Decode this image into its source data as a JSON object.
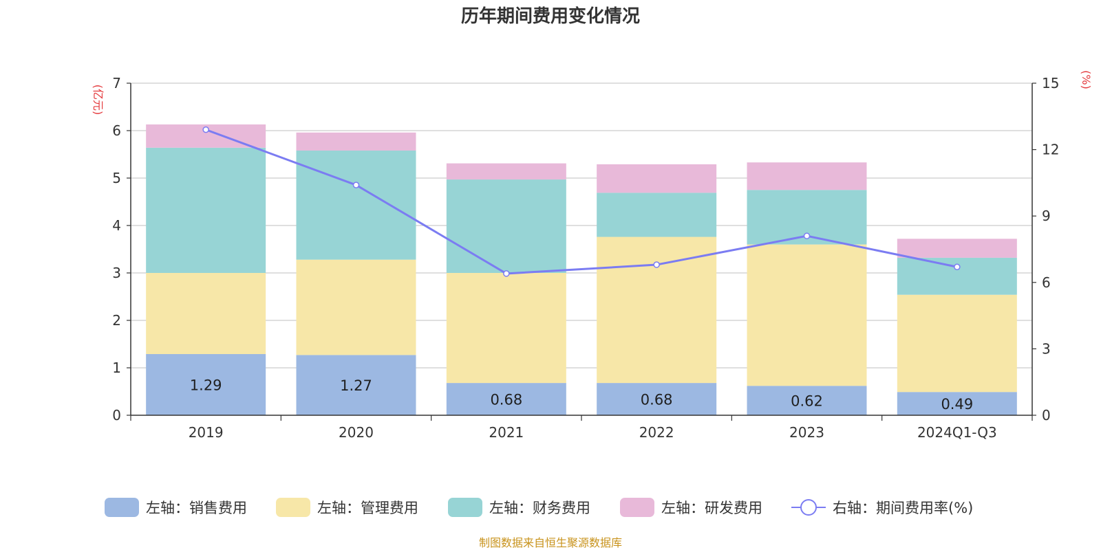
{
  "chart_data": {
    "type": "bar",
    "stacked": true,
    "title": "历年期间费用变化情况",
    "categories": [
      "2019",
      "2020",
      "2021",
      "2022",
      "2023",
      "2024Q1-Q3"
    ],
    "left_axis": {
      "unit": "(亿元)",
      "min": 0,
      "max": 7,
      "ticks": [
        "0",
        "1",
        "2",
        "3",
        "4",
        "5",
        "6",
        "7"
      ]
    },
    "right_axis": {
      "unit": "(%)",
      "min": 0,
      "max": 15,
      "ticks": [
        "0",
        "3",
        "6",
        "9",
        "12",
        "15"
      ]
    },
    "series": [
      {
        "name": "左轴：销售费用",
        "axis": "left",
        "color": "#9cb8e2",
        "values": [
          1.29,
          1.27,
          0.68,
          0.68,
          0.62,
          0.49
        ],
        "labels": [
          "1.29",
          "1.27",
          "0.68",
          "0.68",
          "0.62",
          "0.49"
        ]
      },
      {
        "name": "左轴：管理费用",
        "axis": "left",
        "color": "#f7e7a8",
        "values": [
          1.71,
          2.01,
          2.32,
          3.08,
          2.98,
          2.05
        ]
      },
      {
        "name": "左轴：财务费用",
        "axis": "left",
        "color": "#97d4d5",
        "values": [
          2.64,
          2.3,
          1.97,
          0.93,
          1.15,
          0.78
        ]
      },
      {
        "name": "左轴：研发费用",
        "axis": "left",
        "color": "#e8b9d9",
        "values": [
          0.49,
          0.38,
          0.34,
          0.6,
          0.58,
          0.4
        ]
      },
      {
        "name": "右轴：期间费用率(%)",
        "axis": "right",
        "type": "line",
        "color": "#7b7cf2",
        "values": [
          12.9,
          10.4,
          6.4,
          6.8,
          8.1,
          6.7
        ]
      }
    ],
    "source": "制图数据来自恒生聚源数据库"
  }
}
